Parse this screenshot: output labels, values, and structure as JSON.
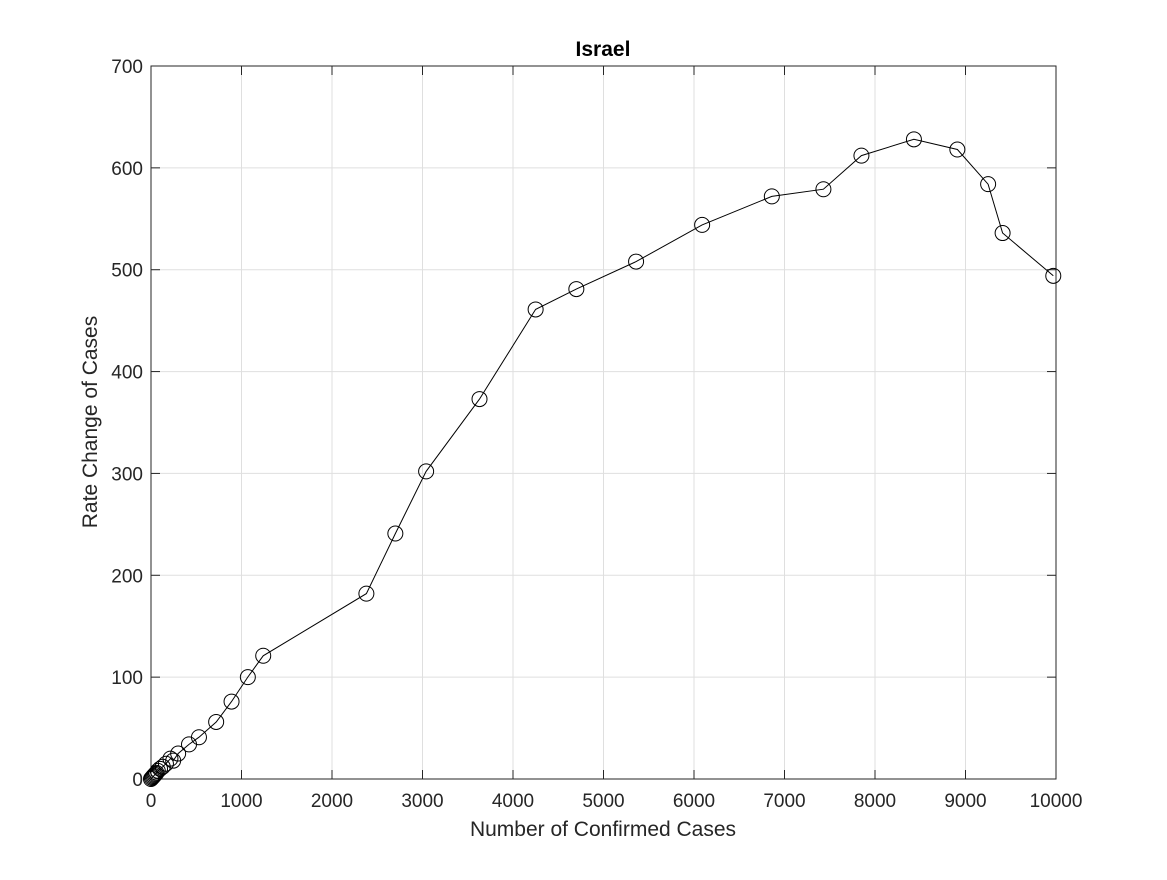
{
  "chart_data": {
    "type": "scatter",
    "title": "Israel",
    "xlabel": "Number of Confirmed Cases",
    "ylabel": "Rate Change of Cases",
    "xlim": [
      0,
      10000
    ],
    "ylim": [
      0,
      700
    ],
    "xticks": [
      0,
      1000,
      2000,
      3000,
      4000,
      5000,
      6000,
      7000,
      8000,
      9000,
      10000
    ],
    "yticks": [
      0,
      100,
      200,
      300,
      400,
      500,
      600,
      700
    ],
    "grid": true,
    "marker": "circle",
    "line_color": "#000000",
    "grid_color": "#dfdfdf",
    "series": [
      {
        "x": [
          0,
          10,
          20,
          30,
          40,
          50,
          60,
          75,
          100,
          130,
          165,
          215,
          245,
          300,
          420,
          530,
          720,
          890,
          1070,
          1240,
          2380,
          2700,
          3040,
          3630,
          4250,
          4700,
          5360,
          6090,
          6860,
          7430,
          7850,
          8430,
          8910,
          9250,
          9410,
          9970
        ],
        "y": [
          0,
          1,
          2,
          3,
          4,
          5,
          6,
          8,
          10,
          12,
          15,
          20,
          18,
          25,
          34,
          41,
          56,
          76,
          100,
          121,
          182,
          241,
          302,
          373,
          461,
          481,
          508,
          544,
          572,
          579,
          612,
          628,
          618,
          584,
          536,
          494
        ]
      }
    ]
  }
}
